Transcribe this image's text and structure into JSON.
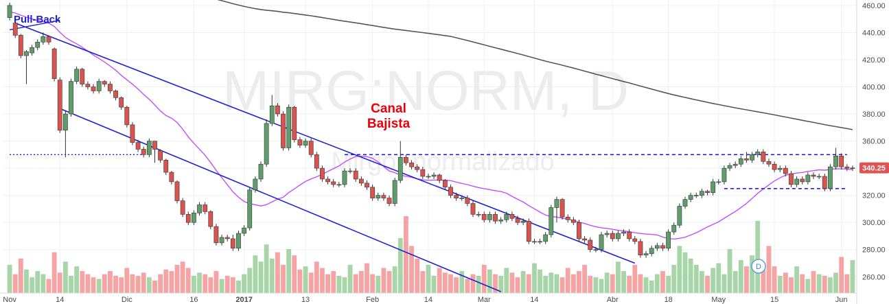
{
  "watermark": {
    "symbol": "MIRG:NORM, D",
    "subtitle": "Mirgor normalizado"
  },
  "annotations": {
    "pullback": "Pull-Back",
    "canal_line1": "Canal",
    "canal_line2": "Bajista"
  },
  "last_price_label": "340.25",
  "dividend_marker": "D",
  "colors": {
    "up": "#5f9e6a",
    "down": "#d9534f",
    "vol_up": "#a8d5a8",
    "vol_down": "#f5a3a3",
    "ma_short": "#c44dff",
    "ma_long": "#555555",
    "trendline": "#1f1fd6",
    "annotation_red": "#e8000b",
    "price_badge": "#e05353"
  },
  "chart_data": {
    "type": "candlestick",
    "title": "",
    "xlabel": "",
    "ylabel": "",
    "ylim": [
      248,
      464
    ],
    "y_ticks": [
      260,
      280,
      300,
      320,
      340,
      360,
      380,
      400,
      420,
      440,
      460
    ],
    "x_tick_labels": [
      {
        "label": "Nov",
        "index": 0,
        "bold": false
      },
      {
        "label": "14",
        "index": 9,
        "bold": false
      },
      {
        "label": "Dic",
        "index": 21,
        "bold": false
      },
      {
        "label": "16",
        "index": 33,
        "bold": false
      },
      {
        "label": "2017",
        "index": 42,
        "bold": true
      },
      {
        "label": "13",
        "index": 53,
        "bold": false
      },
      {
        "label": "Feb",
        "index": 65,
        "bold": false
      },
      {
        "label": "14",
        "index": 75,
        "bold": false
      },
      {
        "label": "Mar",
        "index": 85,
        "bold": false
      },
      {
        "label": "14",
        "index": 94,
        "bold": false
      },
      {
        "label": "Abr",
        "index": 108,
        "bold": false
      },
      {
        "label": "18",
        "index": 118,
        "bold": false
      },
      {
        "label": "May",
        "index": 127,
        "bold": false
      },
      {
        "label": "15",
        "index": 137,
        "bold": false
      },
      {
        "label": "Jun",
        "index": 149,
        "bold": false
      }
    ],
    "candles": {
      "open": [
        451,
        447,
        438,
        423,
        425,
        429,
        433,
        437,
        428,
        405,
        368,
        380,
        404,
        413,
        402,
        400,
        397,
        404,
        402,
        397,
        392,
        385,
        372,
        359,
        354,
        350,
        360,
        353,
        346,
        337,
        330,
        316,
        306,
        300,
        307,
        313,
        308,
        297,
        285,
        289,
        288,
        281,
        292,
        296,
        324,
        332,
        343,
        373,
        386,
        380,
        355,
        385,
        361,
        357,
        360,
        350,
        340,
        332,
        330,
        328,
        328,
        338,
        338,
        332,
        329,
        326,
        318,
        320,
        318,
        314,
        331,
        348,
        344,
        341,
        339,
        334,
        334,
        335,
        331,
        326,
        320,
        318,
        318,
        314,
        306,
        306,
        302,
        306,
        301,
        302,
        306,
        303,
        300,
        301,
        286,
        286,
        286,
        291,
        311,
        317,
        304,
        302,
        300,
        288,
        287,
        280,
        280,
        291,
        292,
        288,
        292,
        293,
        288,
        286,
        276,
        277,
        281,
        283,
        281,
        293,
        298,
        312,
        317,
        320,
        320,
        323,
        322,
        330,
        330,
        340,
        342,
        343,
        347,
        346,
        350,
        352,
        345,
        343,
        339,
        340,
        336,
        328,
        332,
        330,
        335,
        334,
        334,
        325,
        341,
        349,
        341,
        340
      ],
      "close": [
        460,
        438,
        423,
        426,
        429,
        433,
        437,
        433,
        406,
        368,
        380,
        404,
        413,
        402,
        400,
        397,
        404,
        402,
        397,
        392,
        385,
        372,
        359,
        354,
        350,
        360,
        354,
        346,
        337,
        330,
        316,
        306,
        300,
        307,
        313,
        308,
        297,
        285,
        289,
        288,
        281,
        292,
        296,
        324,
        332,
        343,
        373,
        386,
        380,
        355,
        385,
        361,
        357,
        360,
        350,
        340,
        332,
        330,
        328,
        328,
        338,
        338,
        332,
        329,
        326,
        318,
        320,
        318,
        314,
        331,
        348,
        344,
        341,
        339,
        334,
        334,
        335,
        331,
        326,
        320,
        318,
        318,
        314,
        306,
        306,
        302,
        306,
        301,
        302,
        306,
        303,
        300,
        301,
        286,
        286,
        286,
        291,
        311,
        317,
        304,
        302,
        300,
        288,
        287,
        280,
        280,
        291,
        292,
        288,
        292,
        293,
        288,
        286,
        276,
        277,
        281,
        283,
        281,
        293,
        298,
        312,
        317,
        320,
        320,
        323,
        322,
        330,
        330,
        340,
        342,
        343,
        347,
        346,
        350,
        352,
        345,
        343,
        339,
        340,
        336,
        328,
        332,
        330,
        335,
        334,
        334,
        325,
        341,
        349,
        341,
        340,
        340.25
      ],
      "high": [
        462,
        448,
        439,
        427,
        431,
        435,
        440,
        438,
        429,
        407,
        382,
        406,
        415,
        414,
        404,
        402,
        406,
        405,
        404,
        398,
        393,
        386,
        374,
        361,
        356,
        362,
        356,
        354,
        347,
        338,
        331,
        318,
        308,
        309,
        315,
        315,
        309,
        299,
        291,
        291,
        291,
        294,
        298,
        326,
        334,
        345,
        376,
        394,
        388,
        382,
        387,
        386,
        363,
        362,
        362,
        352,
        342,
        334,
        332,
        330,
        340,
        340,
        340,
        334,
        331,
        328,
        322,
        322,
        320,
        333,
        360,
        350,
        346,
        343,
        341,
        336,
        337,
        336,
        332,
        328,
        322,
        320,
        320,
        316,
        308,
        308,
        308,
        308,
        304,
        308,
        308,
        305,
        303,
        303,
        288,
        288,
        293,
        313,
        319,
        318,
        306,
        304,
        302,
        290,
        289,
        282,
        293,
        294,
        294,
        294,
        295,
        295,
        290,
        288,
        279,
        283,
        285,
        285,
        295,
        300,
        314,
        319,
        322,
        322,
        325,
        324,
        332,
        332,
        342,
        344,
        345,
        349,
        352,
        352,
        354,
        354,
        347,
        345,
        342,
        342,
        338,
        334,
        334,
        337,
        337,
        336,
        336,
        343,
        355,
        351,
        343,
        342
      ],
      "low": [
        449,
        436,
        421,
        402,
        423,
        427,
        431,
        431,
        404,
        366,
        348,
        378,
        402,
        400,
        398,
        395,
        395,
        400,
        395,
        390,
        383,
        370,
        357,
        352,
        348,
        348,
        344,
        344,
        335,
        328,
        314,
        304,
        298,
        298,
        305,
        306,
        295,
        283,
        283,
        286,
        279,
        279,
        290,
        294,
        322,
        330,
        341,
        371,
        378,
        353,
        353,
        359,
        355,
        355,
        348,
        338,
        330,
        328,
        326,
        326,
        326,
        336,
        330,
        327,
        324,
        316,
        316,
        316,
        312,
        312,
        329,
        342,
        339,
        337,
        332,
        332,
        332,
        329,
        324,
        318,
        316,
        316,
        312,
        304,
        304,
        300,
        300,
        299,
        299,
        300,
        301,
        298,
        298,
        284,
        284,
        284,
        284,
        289,
        300,
        302,
        300,
        298,
        286,
        285,
        278,
        278,
        278,
        289,
        286,
        286,
        290,
        286,
        284,
        274,
        274,
        275,
        279,
        279,
        279,
        291,
        296,
        310,
        315,
        318,
        318,
        320,
        320,
        328,
        328,
        338,
        340,
        341,
        344,
        344,
        348,
        343,
        341,
        337,
        337,
        334,
        326,
        326,
        328,
        328,
        332,
        332,
        323,
        323,
        339,
        339,
        338,
        338
      ]
    },
    "volume": [
      18,
      12,
      22,
      15,
      10,
      14,
      12,
      9,
      26,
      13,
      20,
      11,
      17,
      14,
      12,
      10,
      9,
      12,
      14,
      11,
      10,
      16,
      12,
      11,
      13,
      10,
      8,
      12,
      15,
      14,
      18,
      20,
      16,
      11,
      13,
      12,
      10,
      14,
      9,
      11,
      10,
      8,
      12,
      16,
      24,
      20,
      31,
      22,
      26,
      18,
      28,
      24,
      15,
      17,
      13,
      20,
      16,
      12,
      14,
      11,
      10,
      18,
      12,
      14,
      19,
      12,
      11,
      16,
      14,
      17,
      35,
      49,
      30,
      22,
      14,
      18,
      11,
      16,
      13,
      12,
      10,
      14,
      9,
      12,
      11,
      18,
      15,
      12,
      11,
      16,
      13,
      10,
      14,
      12,
      19,
      15,
      11,
      13,
      12,
      10,
      16,
      12,
      14,
      18,
      11,
      10,
      9,
      13,
      12,
      20,
      14,
      11,
      18,
      12,
      10,
      8,
      12,
      14,
      11,
      18,
      30,
      26,
      22,
      18,
      14,
      11,
      16,
      19,
      12,
      28,
      14,
      21,
      17,
      24,
      46,
      19,
      30,
      17,
      11,
      13,
      10,
      17,
      12,
      9,
      14,
      12,
      11,
      10,
      13,
      23,
      12,
      21
    ]
  }
}
